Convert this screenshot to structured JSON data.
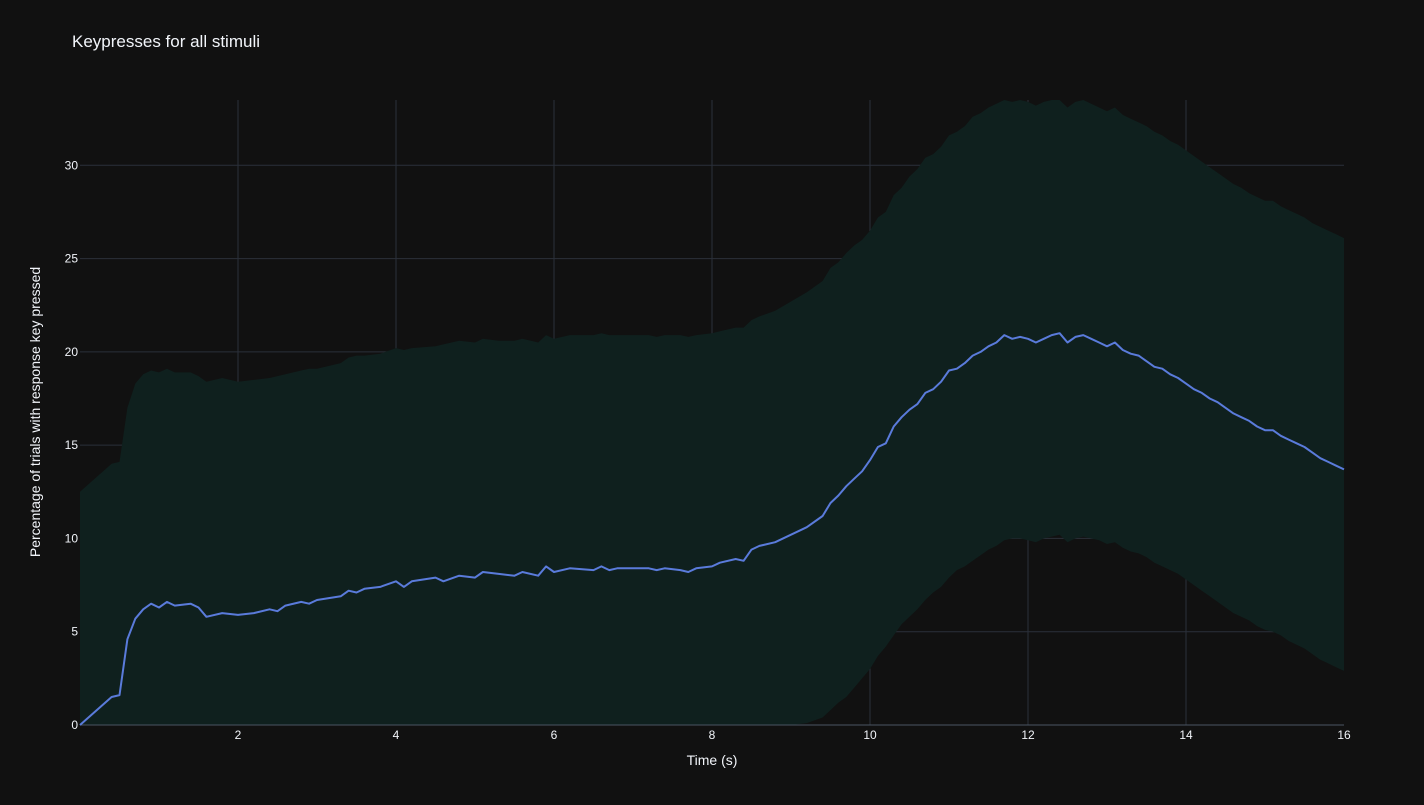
{
  "chart_data": {
    "type": "line",
    "title": "Keypresses for all stimuli",
    "xlabel": "Time (s)",
    "ylabel": "Percentage of trials with response key pressed",
    "xlim": [
      0,
      16
    ],
    "ylim": [
      0,
      33.5
    ],
    "x_ticks": [
      2,
      4,
      6,
      8,
      10,
      12,
      14,
      16
    ],
    "y_ticks": [
      0,
      5,
      10,
      15,
      20,
      25,
      30
    ],
    "grid": true,
    "legend": "none",
    "colors": {
      "line": "#5a7bdb",
      "band": "#0f201e",
      "background": "#111111",
      "grid": "#2b313a"
    },
    "x": [
      0,
      0.4,
      0.5,
      0.6,
      0.7,
      0.8,
      0.9,
      1.0,
      1.1,
      1.2,
      1.4,
      1.5,
      1.6,
      1.8,
      2.0,
      2.2,
      2.4,
      2.5,
      2.6,
      2.8,
      2.9,
      3.0,
      3.3,
      3.4,
      3.5,
      3.6,
      3.8,
      4.0,
      4.1,
      4.2,
      4.5,
      4.6,
      4.8,
      5.0,
      5.1,
      5.3,
      5.5,
      5.6,
      5.8,
      5.9,
      6.0,
      6.2,
      6.5,
      6.6,
      6.7,
      6.8,
      7.0,
      7.2,
      7.3,
      7.4,
      7.6,
      7.7,
      7.8,
      8.0,
      8.1,
      8.3,
      8.4,
      8.5,
      8.6,
      8.8,
      9.0,
      9.2,
      9.4,
      9.5,
      9.6,
      9.7,
      9.8,
      9.9,
      10.0,
      10.1,
      10.2,
      10.3,
      10.4,
      10.5,
      10.6,
      10.7,
      10.8,
      10.9,
      11.0,
      11.1,
      11.2,
      11.3,
      11.4,
      11.5,
      11.6,
      11.7,
      11.8,
      11.9,
      12.0,
      12.1,
      12.2,
      12.3,
      12.4,
      12.5,
      12.6,
      12.7,
      12.8,
      12.9,
      13.0,
      13.1,
      13.2,
      13.3,
      13.4,
      13.5,
      13.6,
      13.7,
      13.8,
      13.9,
      14.0,
      14.1,
      14.2,
      14.3,
      14.4,
      14.5,
      14.6,
      14.7,
      14.8,
      14.9,
      15.0,
      15.1,
      15.2,
      15.3,
      15.4,
      15.5,
      15.6,
      15.7,
      15.8,
      15.9,
      16.0
    ],
    "series": [
      {
        "values": [
          0,
          1.5,
          1.6,
          4.6,
          5.7,
          6.2,
          6.5,
          6.3,
          6.6,
          6.4,
          6.5,
          6.3,
          5.8,
          6.0,
          5.9,
          6.0,
          6.2,
          6.1,
          6.4,
          6.6,
          6.5,
          6.7,
          6.9,
          7.2,
          7.1,
          7.3,
          7.4,
          7.7,
          7.4,
          7.7,
          7.9,
          7.7,
          8.0,
          7.9,
          8.2,
          8.1,
          8.0,
          8.2,
          8.0,
          8.5,
          8.2,
          8.4,
          8.3,
          8.5,
          8.3,
          8.4,
          8.4,
          8.4,
          8.3,
          8.4,
          8.3,
          8.2,
          8.4,
          8.5,
          8.7,
          8.9,
          8.8,
          9.4,
          9.6,
          9.8,
          10.2,
          10.6,
          11.2,
          11.9,
          12.3,
          12.8,
          13.2,
          13.6,
          14.2,
          14.9,
          15.1,
          16.0,
          16.5,
          16.9,
          17.2,
          17.8,
          18.0,
          18.4,
          19.0,
          19.1,
          19.4,
          19.8,
          20.0,
          20.3,
          20.5,
          20.9,
          20.7,
          20.8,
          20.7,
          20.5,
          20.7,
          20.9,
          21.0,
          20.5,
          20.8,
          20.9,
          20.7,
          20.5,
          20.3,
          20.5,
          20.1,
          19.9,
          19.8,
          19.5,
          19.2,
          19.1,
          18.8,
          18.6,
          18.3,
          18.0,
          17.8,
          17.5,
          17.3,
          17.0,
          16.7,
          16.5,
          16.3,
          16.0,
          15.8,
          15.8,
          15.5,
          15.3,
          15.1,
          14.9,
          14.6,
          14.3,
          14.1,
          13.9,
          13.7
        ]
      }
    ],
    "band_upper": [
      12.5,
      14.0,
      14.1,
      17.0,
      18.3,
      18.8,
      19.0,
      18.9,
      19.1,
      18.9,
      18.9,
      18.7,
      18.4,
      18.6,
      18.4,
      18.5,
      18.6,
      18.7,
      18.8,
      19.0,
      19.1,
      19.1,
      19.4,
      19.7,
      19.8,
      19.8,
      19.9,
      20.2,
      20.1,
      20.2,
      20.3,
      20.4,
      20.6,
      20.5,
      20.7,
      20.6,
      20.6,
      20.7,
      20.5,
      20.9,
      20.7,
      20.9,
      20.9,
      21.0,
      20.9,
      20.9,
      20.9,
      20.9,
      20.8,
      20.9,
      20.9,
      20.8,
      20.9,
      21.0,
      21.1,
      21.3,
      21.3,
      21.7,
      21.9,
      22.2,
      22.7,
      23.2,
      23.8,
      24.5,
      24.8,
      25.3,
      25.7,
      26.0,
      26.5,
      27.2,
      27.5,
      28.4,
      28.8,
      29.4,
      29.8,
      30.4,
      30.6,
      31.0,
      31.6,
      31.8,
      32.1,
      32.6,
      32.8,
      33.1,
      33.3,
      33.5,
      33.4,
      33.5,
      33.4,
      33.2,
      33.4,
      33.5,
      33.5,
      33.1,
      33.4,
      33.5,
      33.3,
      33.1,
      32.9,
      33.1,
      32.7,
      32.5,
      32.3,
      32.1,
      31.8,
      31.6,
      31.3,
      31.1,
      30.8,
      30.5,
      30.2,
      29.9,
      29.6,
      29.3,
      29.0,
      28.8,
      28.5,
      28.3,
      28.1,
      28.1,
      27.8,
      27.6,
      27.4,
      27.2,
      26.9,
      26.7,
      26.5,
      26.3,
      26.1
    ],
    "band_lower": [
      0,
      0,
      0,
      0,
      0,
      0,
      0,
      0,
      0,
      0,
      0,
      0,
      0,
      0,
      0,
      0,
      0,
      0,
      0,
      0,
      0,
      0,
      0,
      0,
      0,
      0,
      0,
      0,
      0,
      0,
      0,
      0,
      0,
      0,
      0,
      0,
      0,
      0,
      0,
      0,
      0,
      0,
      0,
      0,
      0,
      0,
      0,
      0,
      0,
      0,
      0,
      0,
      0,
      0,
      0,
      0,
      0,
      0,
      0,
      0,
      0,
      0.1,
      0.4,
      0.8,
      1.2,
      1.5,
      2.0,
      2.5,
      3.0,
      3.7,
      4.2,
      4.8,
      5.4,
      5.8,
      6.2,
      6.7,
      7.1,
      7.4,
      7.9,
      8.3,
      8.5,
      8.8,
      9.1,
      9.4,
      9.6,
      9.9,
      10.0,
      10.0,
      9.9,
      9.8,
      10.0,
      10.1,
      10.2,
      9.8,
      10.0,
      10.1,
      10.0,
      9.9,
      9.7,
      9.8,
      9.5,
      9.3,
      9.2,
      9.0,
      8.7,
      8.5,
      8.3,
      8.1,
      7.8,
      7.5,
      7.2,
      6.9,
      6.6,
      6.3,
      6.0,
      5.8,
      5.6,
      5.3,
      5.1,
      5.0,
      4.8,
      4.5,
      4.3,
      4.1,
      3.8,
      3.5,
      3.3,
      3.1,
      2.9
    ]
  }
}
